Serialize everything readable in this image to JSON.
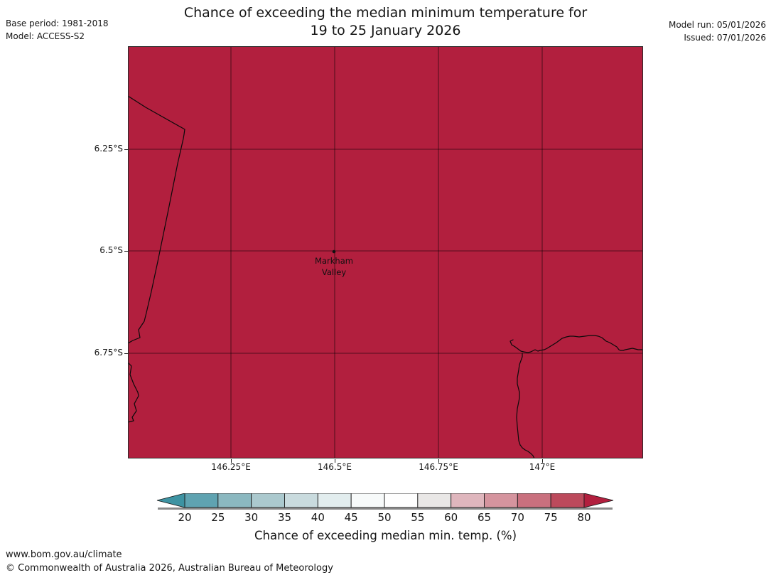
{
  "header": {
    "title_line1": "Chance of exceeding the median minimum temperature for",
    "title_line2": "19 to 25 January 2026",
    "base_period": "Base period: 1981-2018",
    "model": "Model: ACCESS-S2",
    "model_run": "Model run: 05/01/2026",
    "issued": "Issued: 07/01/2026"
  },
  "map": {
    "fill_color": "#B21F3E",
    "place": {
      "line1": "Markham",
      "line2": "Valley"
    },
    "y_axis_ticks": [
      "6.25°S",
      "6.5°S",
      "6.75°S"
    ],
    "x_axis_ticks": [
      "146.25°E",
      "146.5°E",
      "146.75°E",
      "147°E"
    ]
  },
  "colorbar": {
    "label": "Chance of exceeding median min. temp. (%)",
    "tick_labels": [
      "20",
      "25",
      "30",
      "35",
      "40",
      "45",
      "50",
      "55",
      "60",
      "65",
      "70",
      "75",
      "80"
    ],
    "left_arrow_color": "#3D93A2",
    "right_arrow_color": "#B21F3E",
    "segment_colors": [
      "#5FA3B1",
      "#8BB8C0",
      "#ABC9CE",
      "#C9DBDE",
      "#E2EDEE",
      "#F7FAFA",
      "#FEFEFE",
      "#E9E7E6",
      "#DFB6BD",
      "#D5949E",
      "#C9707E",
      "#BC4A5C"
    ]
  },
  "footer": {
    "url": "www.bom.gov.au/climate",
    "copyright": "© Commonwealth of Australia 2026, Australian Bureau of Meteorology"
  },
  "chart_data": {
    "type": "heatmap",
    "title": "Chance of exceeding the median minimum temperature for 19 to 25 January 2026",
    "region_label": "Markham Valley",
    "x_axis_ticks": [
      "146.25°E",
      "146.5°E",
      "146.75°E",
      "147°E"
    ],
    "y_axis_ticks": [
      "6.25°S",
      "6.5°S",
      "6.75°S"
    ],
    "colorbar_label": "Chance of exceeding median min. temp. (%)",
    "colorbar_ticks": [
      20,
      25,
      30,
      35,
      40,
      45,
      50,
      55,
      60,
      65,
      70,
      75,
      80
    ],
    "map_uniform_value": ">80",
    "legend_position": "bottom"
  }
}
